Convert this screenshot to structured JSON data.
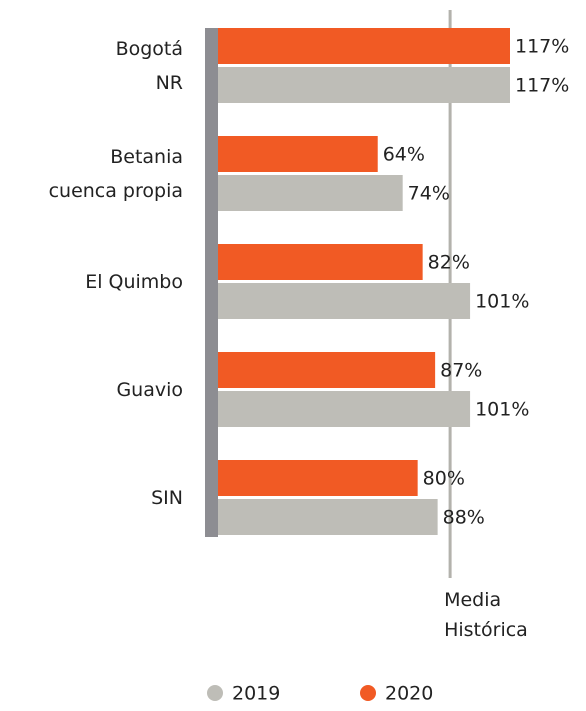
{
  "chart_data": {
    "type": "bar",
    "orientation": "horizontal",
    "categories": [
      "Bogotá\nNR",
      "Betania\ncuenca propia",
      "El Quimbo",
      "Guavio",
      "SIN"
    ],
    "series": [
      {
        "name": "2019",
        "color": "#bebdb7",
        "values": [
          117,
          74,
          101,
          101,
          88
        ],
        "value_labels": [
          "117%",
          "74%",
          "101%",
          "101%",
          "88%"
        ]
      },
      {
        "name": "2020",
        "color": "#f15a24",
        "values": [
          117,
          64,
          82,
          87,
          80
        ],
        "value_labels": [
          "117%",
          "64%",
          "82%",
          "87%",
          "80%"
        ]
      }
    ],
    "xlim": [
      0,
      117
    ],
    "reference_line": {
      "value": 93,
      "label": "Media\nHistórica",
      "color": "#b3b2ac"
    },
    "axis_color": "#8d8d92",
    "legend": "bottom"
  }
}
